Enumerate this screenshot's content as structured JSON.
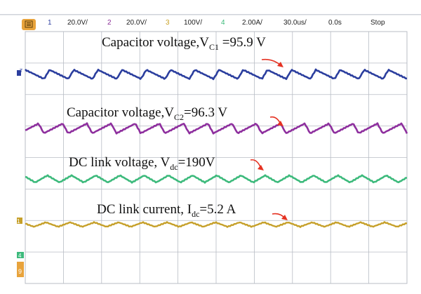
{
  "status_bar": {
    "menu_button_color": "#e8a33c",
    "ch1": {
      "num": "1",
      "scale": "20.0V/",
      "color": "#2e3fa0"
    },
    "ch2": {
      "num": "2",
      "scale": "20.0V/",
      "color": "#8b2f97"
    },
    "ch3": {
      "num": "3",
      "scale": "100V/",
      "color": "#c9a227"
    },
    "ch4": {
      "num": "4",
      "scale": "2.00A/",
      "color": "#3cba7a"
    },
    "timebase": "30.0us/",
    "delay": "0.0s",
    "run_state": "Stop"
  },
  "side_markers": {
    "ch1": "T",
    "ch3": "1",
    "ch4": "4",
    "footer": "9"
  },
  "traces": [
    {
      "name": "Capacitor voltage VC1",
      "color": "#2b3e9e",
      "shape": "sawtooth-down"
    },
    {
      "name": "Capacitor voltage VC2",
      "color": "#8e2f9e",
      "shape": "sawtooth-up"
    },
    {
      "name": "DC link voltage Vdc",
      "color": "#3dba7c",
      "shape": "triangle"
    },
    {
      "name": "DC link current Idc",
      "color": "#c6a02a",
      "shape": "triangle"
    }
  ],
  "annotations": {
    "vc1": {
      "pre": "Capacitor voltage,V",
      "sub": "C1",
      "post": " =95.9 V"
    },
    "vc2": {
      "pre": "Capacitor voltage,V",
      "sub": "C2",
      "post": "=96.3 V"
    },
    "vdc": {
      "pre": "DC link voltage, V",
      "sub": "dc",
      "post": "=190V"
    },
    "idc": {
      "pre": "DC link current, I",
      "sub": "dc",
      "post": "=5.2 A"
    }
  },
  "arrow_color": "#e53222",
  "grid_color": "#b8bcc4"
}
